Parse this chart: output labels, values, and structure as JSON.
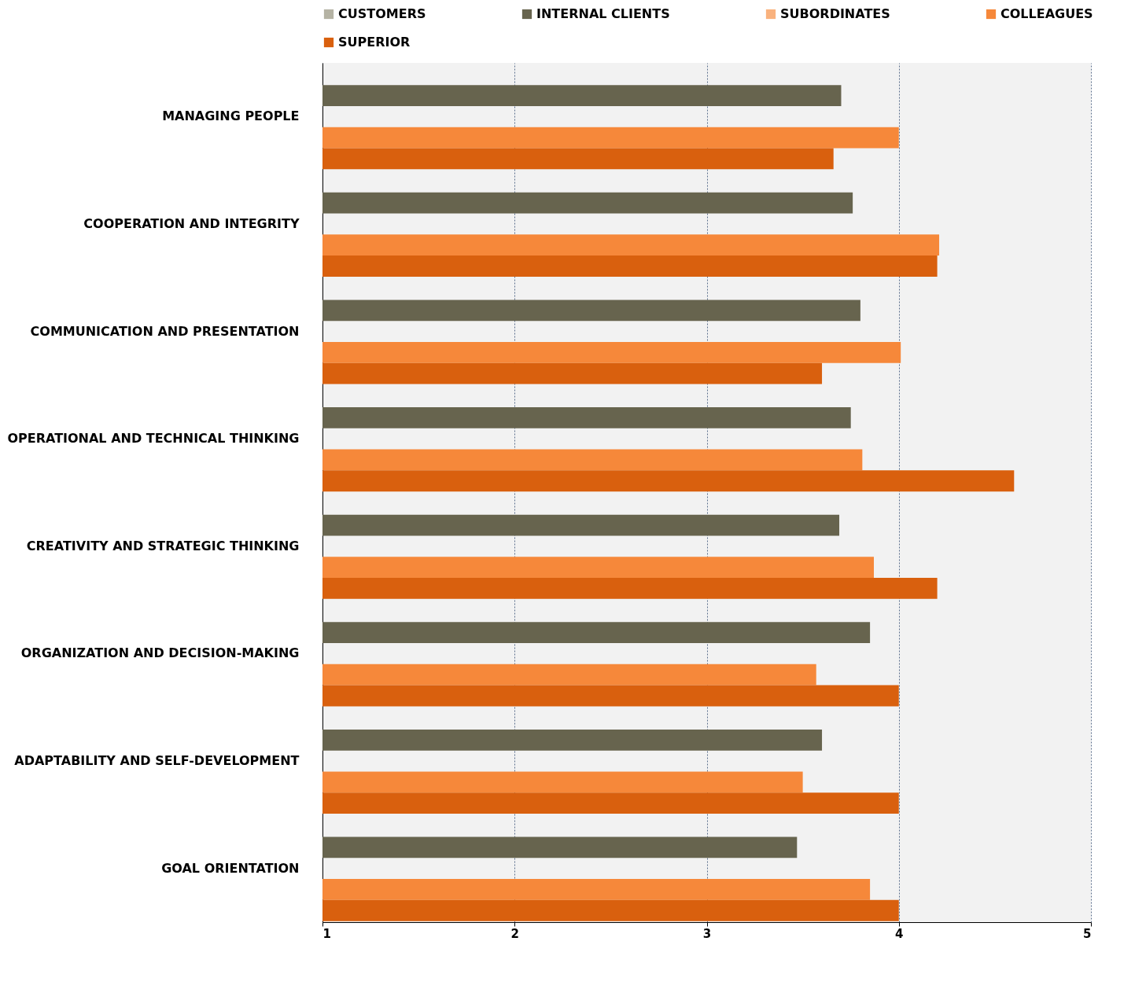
{
  "chart_data": {
    "type": "bar",
    "orientation": "horizontal",
    "categories": [
      "MANAGING PEOPLE",
      "COOPERATION AND INTEGRITY",
      "COMMUNICATION AND PRESENTATION",
      "OPERATIONAL AND TECHNICAL THINKING",
      "CREATIVITY AND STRATEGIC THINKING",
      "ORGANIZATION AND DECISION-MAKING",
      "ADAPTABILITY AND SELF-DEVELOPMENT",
      "GOAL ORIENTATION"
    ],
    "series": [
      {
        "name": "CUSTOMERS",
        "color": "#b5b3a4",
        "values": [
          null,
          null,
          null,
          null,
          null,
          null,
          null,
          null
        ]
      },
      {
        "name": "INTERNAL CLIENTS",
        "color": "#67644e",
        "values": [
          3.7,
          3.76,
          3.8,
          3.75,
          3.69,
          3.85,
          3.6,
          3.47
        ]
      },
      {
        "name": "SUBORDINATES",
        "color": "#f9b27e",
        "values": [
          null,
          null,
          null,
          null,
          null,
          null,
          null,
          null
        ]
      },
      {
        "name": "COLLEAGUES",
        "color": "#f6883a",
        "values": [
          4.0,
          4.21,
          4.01,
          3.81,
          3.87,
          3.57,
          3.5,
          3.85
        ]
      },
      {
        "name": "SUPERIOR",
        "color": "#d9600e",
        "values": [
          3.66,
          4.2,
          3.6,
          4.6,
          4.2,
          4.0,
          4.0,
          4.0
        ]
      }
    ],
    "xlim": [
      1,
      5
    ],
    "xticks": [
      1,
      2,
      3,
      4,
      5
    ],
    "grid": "x",
    "legend": "top"
  }
}
